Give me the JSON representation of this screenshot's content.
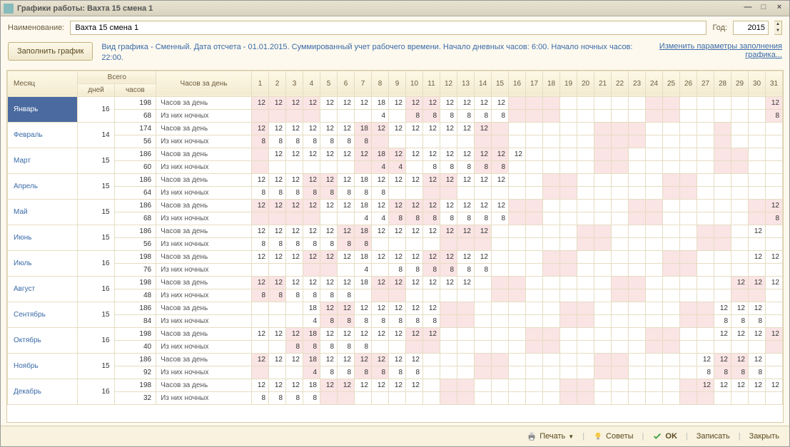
{
  "window": {
    "title": "Графики работы: Вахта 15 смена 1"
  },
  "labels": {
    "name": "Наименование:",
    "year": "Год:",
    "fill": "Заполнить график",
    "desc": "Вид графика - Сменный. Дата отсчета - 01.01.2015. Суммированный учет рабочего времени. Начало дневных часов: 6:00. Начало ночных часов: 22:00.",
    "editParams": "Изменить параметры заполнения графика...",
    "month": "Месяц",
    "total": "Всего",
    "days": "дней",
    "hours": "часов",
    "hoursPerDay": "Часов за день",
    "perDay": "Часов за день",
    "night": "Из них ночных"
  },
  "fields": {
    "name": "Вахта 15 смена 1",
    "year": "2015"
  },
  "footer": {
    "print": "Печать",
    "tips": "Советы",
    "ok": "OK",
    "save": "Записать",
    "close": "Закрыть"
  },
  "colors": {
    "pink": "#fae4e4",
    "headerBg": "#f3ead0",
    "link": "#3a6aa8",
    "selected": "#4a6aa0"
  },
  "dayCount": 31,
  "months": [
    {
      "name": "Январь",
      "days": 16,
      "hours": 198,
      "nightTotal": 68,
      "selected": true,
      "day": {
        "1": 12,
        "2": 12,
        "3": 12,
        "4": 12,
        "5": 12,
        "6": 12,
        "7": 12,
        "8": 18,
        "9": 12,
        "10": 12,
        "11": 12,
        "12": 12,
        "13": 12,
        "14": 12,
        "15": 12,
        "31": 12
      },
      "night": {
        "8": 4,
        "10": 8,
        "11": 8,
        "12": 8,
        "13": 8,
        "14": 8,
        "15": 8,
        "31": 8
      },
      "pink": [
        1,
        2,
        3,
        4,
        10,
        11,
        16,
        17,
        18,
        24,
        25,
        31
      ]
    },
    {
      "name": "Февраль",
      "days": 14,
      "hours": 174,
      "nightTotal": 56,
      "day": {
        "1": 12,
        "2": 12,
        "3": 12,
        "4": 12,
        "5": 12,
        "6": 12,
        "7": 18,
        "8": 12,
        "9": 12,
        "10": 12,
        "11": 12,
        "12": 12,
        "13": 12,
        "14": 12
      },
      "night": {
        "1": 8,
        "2": 8,
        "3": 8,
        "4": 8,
        "5": 8,
        "6": 8,
        "7": 8
      },
      "pink": [
        1,
        7,
        8,
        14,
        15,
        21,
        22,
        23,
        28
      ]
    },
    {
      "name": "Март",
      "days": 15,
      "hours": 186,
      "nightTotal": 60,
      "day": {
        "2": 12,
        "3": 12,
        "4": 12,
        "5": 12,
        "6": 12,
        "7": 12,
        "8": 18,
        "9": 12,
        "10": 12,
        "11": 12,
        "12": 12,
        "13": 12,
        "14": 12,
        "15": 12,
        "16": 12
      },
      "night": {
        "8": 4,
        "9": 4,
        "11": 8,
        "12": 8,
        "13": 8,
        "14": 8,
        "15": 8
      },
      "pink": [
        1,
        7,
        8,
        9,
        14,
        15,
        21,
        22,
        28,
        29
      ]
    },
    {
      "name": "Апрель",
      "days": 15,
      "hours": 186,
      "nightTotal": 64,
      "day": {
        "1": 12,
        "2": 12,
        "3": 12,
        "4": 12,
        "5": 12,
        "6": 12,
        "7": 18,
        "8": 12,
        "9": 12,
        "10": 12,
        "11": 12,
        "12": 12,
        "13": 12,
        "14": 12,
        "15": 12
      },
      "night": {
        "1": 8,
        "2": 8,
        "3": 8,
        "4": 8,
        "5": 8,
        "6": 8,
        "7": 8,
        "8": 8
      },
      "pink": [
        4,
        5,
        11,
        12,
        18,
        19,
        25,
        26
      ]
    },
    {
      "name": "Май",
      "days": 15,
      "hours": 186,
      "nightTotal": 68,
      "day": {
        "1": 12,
        "2": 12,
        "3": 12,
        "4": 12,
        "5": 12,
        "6": 12,
        "7": 18,
        "8": 12,
        "9": 12,
        "10": 12,
        "11": 12,
        "12": 12,
        "13": 12,
        "14": 12,
        "15": 12,
        "31": 12
      },
      "night": {
        "7": 4,
        "8": 4,
        "9": 8,
        "10": 8,
        "11": 8,
        "12": 8,
        "13": 8,
        "14": 8,
        "15": 8,
        "31": 8
      },
      "pink": [
        1,
        2,
        3,
        4,
        9,
        10,
        11,
        16,
        17,
        23,
        24,
        30,
        31
      ]
    },
    {
      "name": "Июнь",
      "days": 15,
      "hours": 186,
      "nightTotal": 56,
      "day": {
        "1": 12,
        "2": 12,
        "3": 12,
        "4": 12,
        "5": 12,
        "6": 12,
        "7": 18,
        "8": 12,
        "9": 12,
        "10": 12,
        "11": 12,
        "12": 12,
        "13": 12,
        "14": 12,
        "30": 12
      },
      "night": {
        "1": 8,
        "2": 8,
        "3": 8,
        "4": 8,
        "5": 8,
        "6": 8,
        "7": 8
      },
      "pink": [
        6,
        7,
        12,
        13,
        14,
        20,
        21,
        27,
        28
      ]
    },
    {
      "name": "Июль",
      "days": 16,
      "hours": 198,
      "nightTotal": 76,
      "day": {
        "1": 12,
        "2": 12,
        "3": 12,
        "4": 12,
        "5": 12,
        "6": 12,
        "7": 18,
        "8": 12,
        "9": 12,
        "10": 12,
        "11": 12,
        "12": 12,
        "13": 12,
        "14": 12,
        "30": 12,
        "31": 12
      },
      "night": {
        "7": 4,
        "9": 8,
        "10": 8,
        "11": 8,
        "12": 8,
        "13": 8,
        "14": 8
      },
      "pink": [
        4,
        5,
        11,
        12,
        18,
        19,
        25,
        26
      ]
    },
    {
      "name": "Август",
      "days": 16,
      "hours": 198,
      "nightTotal": 48,
      "day": {
        "1": 12,
        "2": 12,
        "3": 12,
        "4": 12,
        "5": 12,
        "6": 12,
        "7": 18,
        "8": 12,
        "9": 12,
        "10": 12,
        "11": 12,
        "12": 12,
        "13": 12,
        "29": 12,
        "30": 12,
        "31": 12
      },
      "night": {
        "1": 8,
        "2": 8,
        "3": 8,
        "4": 8,
        "5": 8,
        "6": 8
      },
      "pink": [
        1,
        2,
        8,
        9,
        15,
        16,
        22,
        23,
        29,
        30
      ]
    },
    {
      "name": "Сентябрь",
      "days": 15,
      "hours": 186,
      "nightTotal": 84,
      "day": {
        "4": 18,
        "5": 12,
        "6": 12,
        "7": 12,
        "8": 12,
        "9": 12,
        "10": 12,
        "11": 12,
        "28": 12,
        "29": 12,
        "30": 12
      },
      "night": {
        "4": 4,
        "5": 8,
        "6": 8,
        "7": 8,
        "8": 8,
        "9": 8,
        "10": 8,
        "11": 8,
        "28": 8,
        "29": 8,
        "30": 8
      },
      "pink": [
        5,
        6,
        12,
        13,
        19,
        20,
        26,
        27
      ]
    },
    {
      "name": "Октябрь",
      "days": 16,
      "hours": 198,
      "nightTotal": 40,
      "day": {
        "1": 12,
        "2": 12,
        "3": 12,
        "4": 18,
        "5": 12,
        "6": 12,
        "7": 12,
        "8": 12,
        "9": 12,
        "10": 12,
        "11": 12,
        "28": 12,
        "29": 12,
        "30": 12,
        "31": 12
      },
      "night": {
        "3": 8,
        "4": 8,
        "5": 8,
        "6": 8,
        "7": 8
      },
      "pink": [
        3,
        4,
        10,
        11,
        17,
        18,
        24,
        25,
        31
      ]
    },
    {
      "name": "Ноябрь",
      "days": 15,
      "hours": 186,
      "nightTotal": 92,
      "day": {
        "1": 12,
        "2": 12,
        "3": 12,
        "4": 18,
        "5": 12,
        "6": 12,
        "7": 12,
        "8": 12,
        "9": 12,
        "10": 12,
        "27": 12,
        "28": 12,
        "29": 12,
        "30": 12
      },
      "night": {
        "4": 4,
        "5": 8,
        "6": 8,
        "7": 8,
        "8": 8,
        "9": 8,
        "10": 8,
        "27": 8,
        "28": 8,
        "29": 8,
        "30": 8
      },
      "pink": [
        1,
        4,
        7,
        8,
        14,
        15,
        21,
        22,
        28,
        29
      ]
    },
    {
      "name": "Декабрь",
      "days": 16,
      "hours": 198,
      "nightTotal": 32,
      "day": {
        "1": 12,
        "2": 12,
        "3": 12,
        "4": 18,
        "5": 12,
        "6": 12,
        "7": 12,
        "8": 12,
        "9": 12,
        "10": 12,
        "27": 12,
        "28": 12,
        "29": 12,
        "30": 12,
        "31": 12
      },
      "night": {
        "1": 8,
        "2": 8,
        "3": 8,
        "4": 8
      },
      "pink": [
        5,
        6,
        12,
        13,
        19,
        20,
        26,
        27
      ]
    }
  ]
}
